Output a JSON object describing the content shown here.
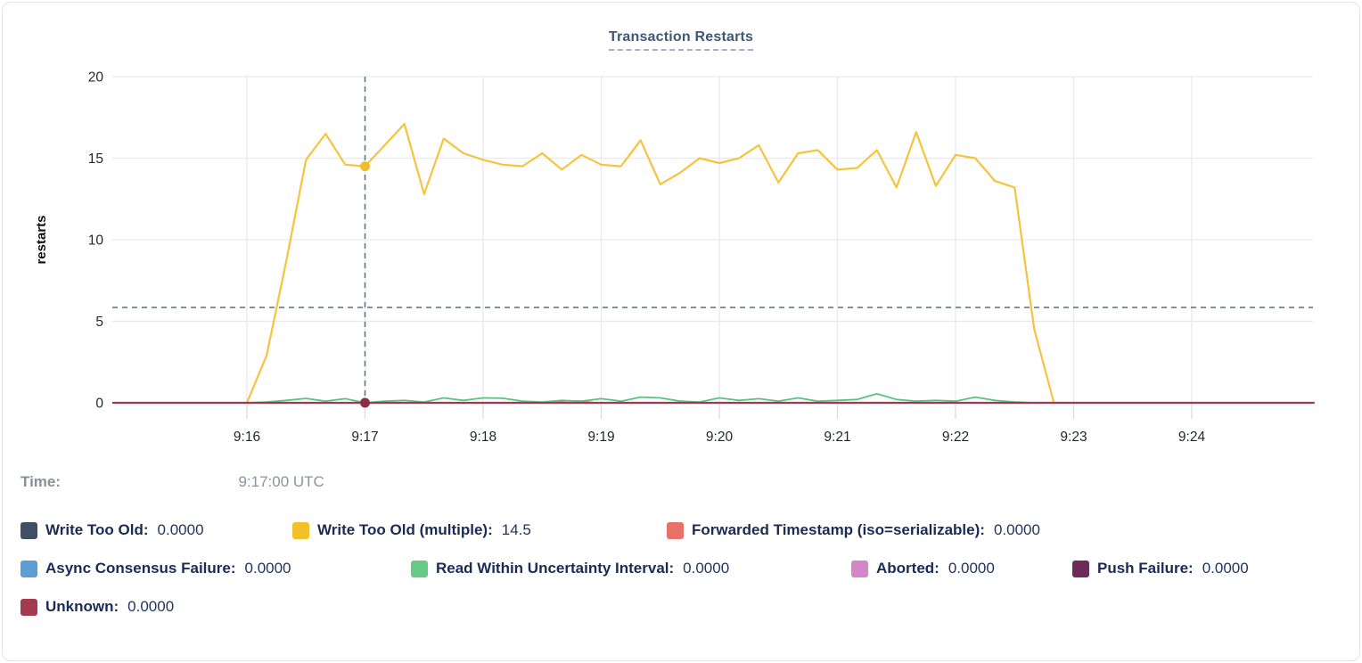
{
  "chart_data": {
    "type": "line",
    "title": "Transaction Restarts",
    "ylabel": "restarts",
    "ylim": [
      0,
      20
    ],
    "yticks": [
      0,
      5,
      10,
      15,
      20
    ],
    "xticks": [
      "9:16",
      "9:17",
      "9:18",
      "9:19",
      "9:20",
      "9:21",
      "9:22",
      "9:23",
      "9:24"
    ],
    "grid": true,
    "crosshair": {
      "time": "9:17:00",
      "hline_value": 5.85
    },
    "series": [
      {
        "name": "Write Too Old",
        "color": "#3e4f66",
        "points": [
          [
            "9:14:52",
            0
          ],
          [
            "9:25:02",
            0
          ]
        ]
      },
      {
        "name": "Write Too Old (multiple)",
        "color": "#f5c43c",
        "points": [
          [
            "9:16:00",
            0
          ],
          [
            "9:16:10",
            2.9
          ],
          [
            "9:16:20",
            8.7
          ],
          [
            "9:16:30",
            14.9
          ],
          [
            "9:16:40",
            16.5
          ],
          [
            "9:16:50",
            14.6
          ],
          [
            "9:17:00",
            14.5
          ],
          [
            "9:17:10",
            15.8
          ],
          [
            "9:17:20",
            17.1
          ],
          [
            "9:17:30",
            12.8
          ],
          [
            "9:17:40",
            16.2
          ],
          [
            "9:17:50",
            15.3
          ],
          [
            "9:18:00",
            14.9
          ],
          [
            "9:18:10",
            14.6
          ],
          [
            "9:18:20",
            14.5
          ],
          [
            "9:18:30",
            15.3
          ],
          [
            "9:18:40",
            14.3
          ],
          [
            "9:18:50",
            15.2
          ],
          [
            "9:19:00",
            14.6
          ],
          [
            "9:19:10",
            14.5
          ],
          [
            "9:19:20",
            16.1
          ],
          [
            "9:19:30",
            13.4
          ],
          [
            "9:19:40",
            14.1
          ],
          [
            "9:19:50",
            15.0
          ],
          [
            "9:20:00",
            14.7
          ],
          [
            "9:20:10",
            15.0
          ],
          [
            "9:20:20",
            15.8
          ],
          [
            "9:20:30",
            13.5
          ],
          [
            "9:20:40",
            15.3
          ],
          [
            "9:20:50",
            15.5
          ],
          [
            "9:21:00",
            14.3
          ],
          [
            "9:21:10",
            14.4
          ],
          [
            "9:21:20",
            15.5
          ],
          [
            "9:21:30",
            13.2
          ],
          [
            "9:21:40",
            16.6
          ],
          [
            "9:21:50",
            13.3
          ],
          [
            "9:22:00",
            15.2
          ],
          [
            "9:22:10",
            15.0
          ],
          [
            "9:22:20",
            13.6
          ],
          [
            "9:22:30",
            13.2
          ],
          [
            "9:22:40",
            4.5
          ],
          [
            "9:22:50",
            0
          ]
        ]
      },
      {
        "name": "Forwarded Timestamp (iso=serializable)",
        "color": "#e97268",
        "points": [
          [
            "9:14:52",
            0
          ],
          [
            "9:18:35",
            0
          ],
          [
            "9:18:42",
            0.12
          ],
          [
            "9:18:50",
            0.1
          ],
          [
            "9:18:57",
            0
          ],
          [
            "9:25:02",
            0
          ]
        ]
      },
      {
        "name": "Async Consensus Failure",
        "color": "#5c9dd6",
        "points": [
          [
            "9:14:52",
            0
          ],
          [
            "9:25:02",
            0
          ]
        ]
      },
      {
        "name": "Read Within Uncertainty Interval",
        "color": "#5dc182",
        "points": [
          [
            "9:16:00",
            0
          ],
          [
            "9:16:10",
            0.05
          ],
          [
            "9:16:20",
            0.15
          ],
          [
            "9:16:30",
            0.27
          ],
          [
            "9:16:40",
            0.1
          ],
          [
            "9:16:50",
            0.25
          ],
          [
            "9:17:00",
            0
          ],
          [
            "9:17:10",
            0.1
          ],
          [
            "9:17:20",
            0.15
          ],
          [
            "9:17:30",
            0.05
          ],
          [
            "9:17:40",
            0.3
          ],
          [
            "9:17:50",
            0.15
          ],
          [
            "9:18:00",
            0.3
          ],
          [
            "9:18:10",
            0.28
          ],
          [
            "9:18:20",
            0.1
          ],
          [
            "9:18:30",
            0.05
          ],
          [
            "9:18:40",
            0.15
          ],
          [
            "9:18:50",
            0.1
          ],
          [
            "9:19:00",
            0.25
          ],
          [
            "9:19:10",
            0.1
          ],
          [
            "9:19:20",
            0.35
          ],
          [
            "9:19:30",
            0.3
          ],
          [
            "9:19:40",
            0.1
          ],
          [
            "9:19:50",
            0.05
          ],
          [
            "9:20:00",
            0.3
          ],
          [
            "9:20:10",
            0.15
          ],
          [
            "9:20:20",
            0.25
          ],
          [
            "9:20:30",
            0.1
          ],
          [
            "9:20:40",
            0.3
          ],
          [
            "9:20:50",
            0.1
          ],
          [
            "9:21:00",
            0.15
          ],
          [
            "9:21:10",
            0.2
          ],
          [
            "9:21:20",
            0.55
          ],
          [
            "9:21:30",
            0.2
          ],
          [
            "9:21:40",
            0.1
          ],
          [
            "9:21:50",
            0.15
          ],
          [
            "9:22:00",
            0.1
          ],
          [
            "9:22:10",
            0.35
          ],
          [
            "9:22:20",
            0.15
          ],
          [
            "9:22:30",
            0.05
          ],
          [
            "9:22:40",
            0
          ]
        ]
      },
      {
        "name": "Aborted",
        "color": "#d486c6",
        "points": [
          [
            "9:14:52",
            0
          ],
          [
            "9:25:02",
            0
          ]
        ]
      },
      {
        "name": "Push Failure",
        "color": "#6d2a5b",
        "points": [
          [
            "9:14:52",
            0
          ],
          [
            "9:25:02",
            0
          ]
        ]
      },
      {
        "name": "Unknown",
        "color": "#a13850",
        "points": [
          [
            "9:14:52",
            0
          ],
          [
            "9:25:02",
            0
          ]
        ]
      }
    ],
    "highlight": {
      "time": "9:17:00",
      "points": [
        {
          "series": "Write Too Old (multiple)",
          "value": 14.5,
          "dot_color": "#efbd30"
        },
        {
          "series": "Unknown",
          "value": 0,
          "dot_color": "#8a2f47"
        }
      ]
    }
  },
  "tooltip": {
    "time_label": "Time:",
    "time_value": "9:17:00 UTC"
  },
  "legend": {
    "rows": [
      [
        {
          "name": "Write Too Old",
          "value": "0.0000",
          "color": "#3e4f66"
        },
        {
          "name": "Write Too Old (multiple)",
          "value": "14.5",
          "color": "#f2c029"
        },
        {
          "name": "Forwarded Timestamp (iso=serializable)",
          "value": "0.0000",
          "color": "#e97268"
        }
      ],
      [
        {
          "name": "Async Consensus Failure",
          "value": "0.0000",
          "color": "#5c9dd6"
        },
        {
          "name": "Read Within Uncertainty Interval",
          "value": "0.0000",
          "color": "#66cb85"
        },
        {
          "name": "Aborted",
          "value": "0.0000",
          "color": "#d486c6"
        },
        {
          "name": "Push Failure",
          "value": "0.0000",
          "color": "#6d2a5b"
        }
      ],
      [
        {
          "name": "Unknown",
          "value": "0.0000",
          "color": "#a43a50"
        }
      ]
    ]
  },
  "colors": {
    "crosshair": "#51708e",
    "gridline": "#e9e9e9",
    "tick_text": "#24282e",
    "title": "#3d5878"
  }
}
